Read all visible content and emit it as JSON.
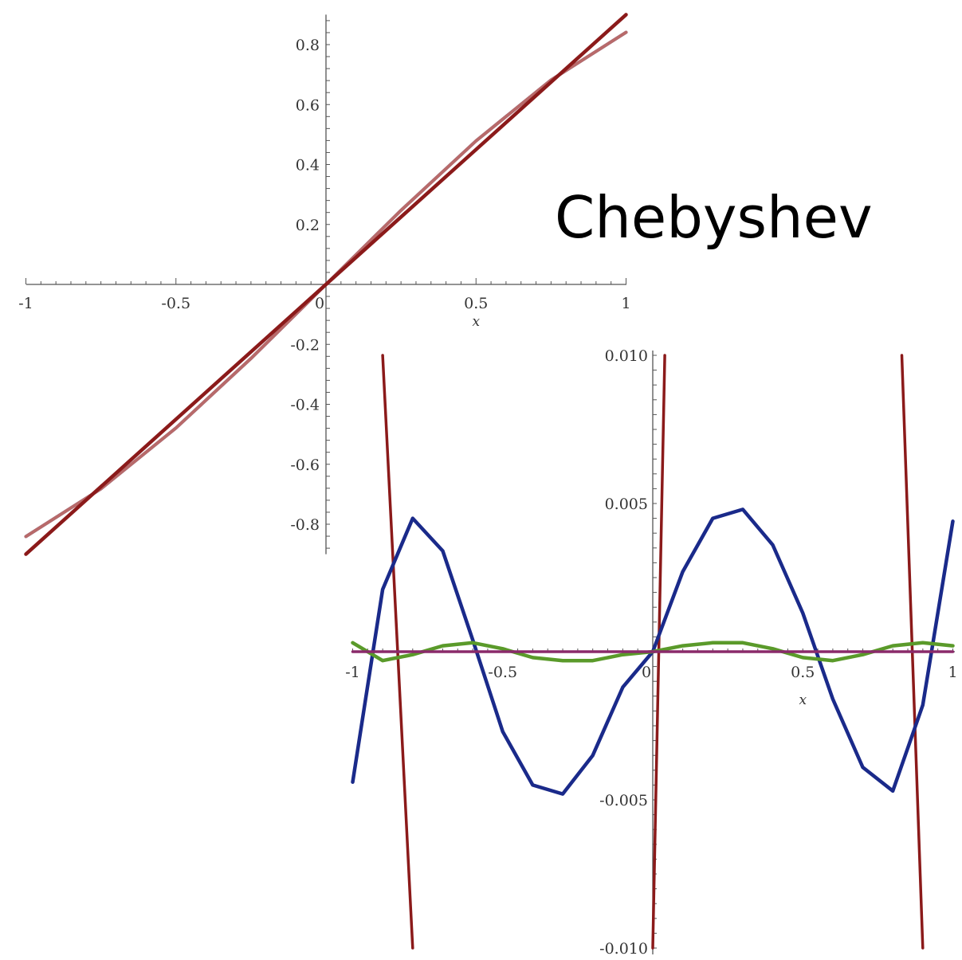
{
  "annotation": "Chebyshev",
  "chart_data": [
    {
      "type": "line",
      "title": "",
      "xlabel": "x",
      "ylabel": "",
      "xlim": [
        -1,
        1
      ],
      "ylim": [
        -0.9,
        0.9
      ],
      "x_ticks": [
        -1,
        -0.5,
        0,
        0.5,
        1
      ],
      "x_tick_labels": [
        "-1",
        "-0.5",
        "0",
        "0.5",
        "1"
      ],
      "y_ticks": [
        -0.8,
        -0.6,
        -0.4,
        -0.2,
        0.2,
        0.4,
        0.6,
        0.8
      ],
      "y_tick_labels": [
        "-0.8",
        "-0.6",
        "-0.4",
        "-0.2",
        "0.2",
        "0.4",
        "0.6",
        "0.8"
      ],
      "grid": false,
      "series": [
        {
          "color": "#4a5a9a",
          "x": [
            -1,
            -0.75,
            -0.5,
            -0.25,
            0,
            0.25,
            0.5,
            0.75,
            1
          ],
          "y": [
            -0.841,
            -0.682,
            -0.479,
            -0.247,
            0,
            0.247,
            0.479,
            0.682,
            0.841
          ]
        },
        {
          "color": "#b86a6a",
          "x": [
            -1,
            -0.75,
            -0.5,
            -0.25,
            0,
            0.25,
            0.5,
            0.75,
            1
          ],
          "y": [
            -0.841,
            -0.682,
            -0.479,
            -0.247,
            0,
            0.247,
            0.479,
            0.682,
            0.841
          ]
        },
        {
          "color": "#8b1a1a",
          "x": [
            -1,
            1
          ],
          "y": [
            -0.9,
            0.9
          ]
        }
      ]
    },
    {
      "type": "line",
      "title": "",
      "xlabel": "x",
      "ylabel": "",
      "xlim": [
        -1,
        1
      ],
      "ylim": [
        -0.0098,
        0.0098
      ],
      "x_ticks": [
        -1,
        -0.5,
        0,
        0.5,
        1
      ],
      "x_tick_labels": [
        "-1",
        "-0.5",
        "0",
        "0.5",
        "1"
      ],
      "y_ticks": [
        -0.01,
        -0.005,
        0.005,
        0.01
      ],
      "y_tick_labels": [
        "-0.010",
        "-0.005",
        "0.005",
        "0.010"
      ],
      "grid": false,
      "series": [
        {
          "color": "#8b1a1a",
          "x": [
            -0.9,
            -0.8,
            0.04,
            0,
            0.04,
            0.8,
            0.9
          ],
          "y": [
            0.01,
            -0.01,
            null,
            -0.01,
            0.01,
            null,
            0.01
          ]
        },
        {
          "color": "#8b1a1a",
          "x": [
            0.83,
            0.9
          ],
          "y": [
            0.01,
            -0.01
          ]
        },
        {
          "color": "#1a2a8a",
          "x": [
            -1,
            -0.9,
            -0.8,
            -0.7,
            -0.6,
            -0.5,
            -0.4,
            -0.3,
            -0.2,
            -0.1,
            0,
            0.1,
            0.2,
            0.3,
            0.4,
            0.5,
            0.6,
            0.7,
            0.8,
            0.9,
            1
          ],
          "y": [
            -0.0044,
            0.0021,
            0.0045,
            0.0034,
            0.0004,
            -0.0027,
            -0.0045,
            -0.0048,
            -0.0035,
            -0.0012,
            0,
            0.0027,
            0.0045,
            0.0048,
            0.0036,
            0.0013,
            -0.0016,
            -0.0039,
            -0.0047,
            -0.0018,
            0.0044
          ]
        },
        {
          "color": "#5a9a2a",
          "x": [
            -1,
            -0.9,
            -0.8,
            -0.7,
            -0.6,
            -0.5,
            -0.4,
            -0.3,
            -0.2,
            -0.1,
            0,
            0.1,
            0.2,
            0.3,
            0.4,
            0.5,
            0.6,
            0.7,
            0.8,
            0.9,
            1
          ],
          "y": [
            0.0003,
            -0.0003,
            -0.0001,
            0.0002,
            0.0003,
            0.0001,
            -0.0002,
            -0.0003,
            -0.0003,
            -0.0001,
            0,
            0.0002,
            0.0003,
            0.0003,
            0.0001,
            -0.0002,
            -0.0003,
            -0.0001,
            0.0002,
            0.0003,
            0.0002
          ]
        },
        {
          "color": "#8a2a6a",
          "x": [
            -1,
            1
          ],
          "y": [
            0,
            0
          ]
        }
      ]
    }
  ]
}
